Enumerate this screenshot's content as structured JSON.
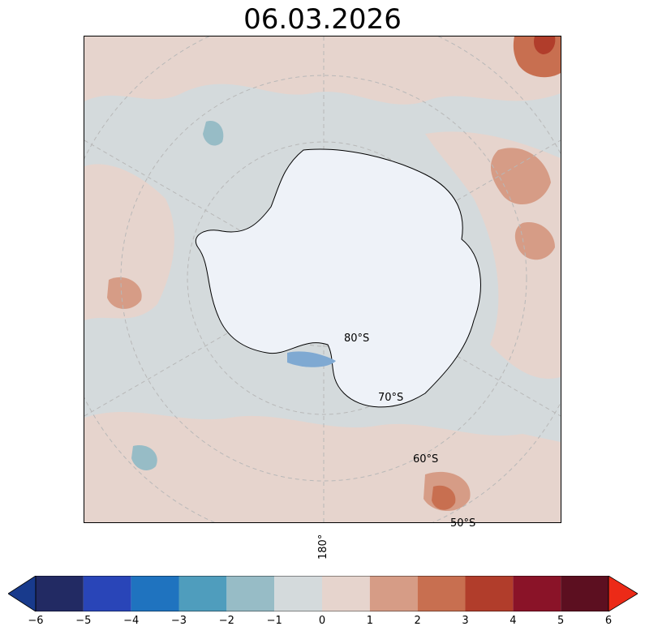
{
  "title": "06.03.2026",
  "latitude_labels": [
    "80°S",
    "70°S",
    "60°S",
    "50°S"
  ],
  "longitude_labels": [
    "180°"
  ],
  "colorbar": {
    "ticks": [
      "−6",
      "−5",
      "−4",
      "−3",
      "−2",
      "−1",
      "0",
      "1",
      "2",
      "3",
      "4",
      "5",
      "6"
    ],
    "bins": [
      {
        "from": -6,
        "to": -5,
        "color": "#222a63"
      },
      {
        "from": -5,
        "to": -4,
        "color": "#2945b8"
      },
      {
        "from": -4,
        "to": -3,
        "color": "#1f73bf"
      },
      {
        "from": -3,
        "to": -2,
        "color": "#4f9dbd"
      },
      {
        "from": -2,
        "to": -1,
        "color": "#97bcc6"
      },
      {
        "from": -1,
        "to": 0,
        "color": "#d4dadc"
      },
      {
        "from": 0,
        "to": 1,
        "color": "#e6d4cd"
      },
      {
        "from": 1,
        "to": 2,
        "color": "#d69c86"
      },
      {
        "from": 2,
        "to": 3,
        "color": "#c86f50"
      },
      {
        "from": 3,
        "to": 4,
        "color": "#b13d2b"
      },
      {
        "from": 4,
        "to": 5,
        "color": "#8a1328"
      },
      {
        "from": 5,
        "to": 6,
        "color": "#5c0f20"
      }
    ],
    "under_color": "#183a8c",
    "over_color": "#ec2a17"
  },
  "colors": {
    "ocean_neutral": "#d4dadc",
    "ocean_warm": "#e6d4cd",
    "ice_sheet": "#eef2f8"
  }
}
